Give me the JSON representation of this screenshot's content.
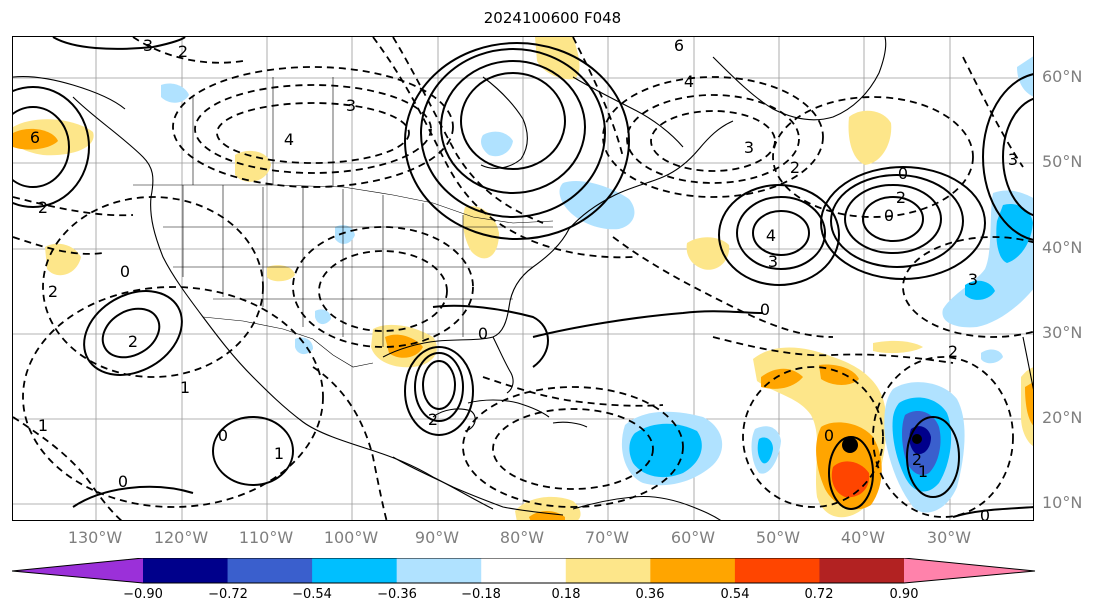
{
  "title": "2024100600 F048",
  "map": {
    "latitude_labels": [
      "60°N",
      "50°N",
      "40°N",
      "30°N",
      "20°N",
      "10°N"
    ],
    "longitude_labels": [
      "130°W",
      "120°W",
      "110°W",
      "100°W",
      "90°W",
      "80°W",
      "70°W",
      "60°W",
      "50°W",
      "40°W",
      "30°W"
    ],
    "contour_labels": [
      "3",
      "2",
      "6",
      "4",
      "4",
      "3",
      "3",
      "2",
      "0",
      "0",
      "2",
      "4",
      "3",
      "3",
      "0",
      "2",
      "2",
      "1",
      "1",
      "0",
      "0",
      "2",
      "2",
      "0",
      "3",
      "2",
      "1",
      "0",
      "1",
      "2",
      "0",
      "0",
      "6"
    ],
    "storm_marker": "black-dot"
  },
  "colorbar": {
    "tick_labels": [
      "−0.90",
      "−0.72",
      "−0.54",
      "−0.36",
      "−0.18",
      "0.18",
      "0.36",
      "0.54",
      "0.72",
      "0.90"
    ],
    "colors": [
      "#9b30d9",
      "#00008b",
      "#3a5fcd",
      "#00bfff",
      "#b0e2ff",
      "#ffffff",
      "#fde68a",
      "#ffa500",
      "#ff4500",
      "#b22222",
      "#ff82ab"
    ]
  }
}
